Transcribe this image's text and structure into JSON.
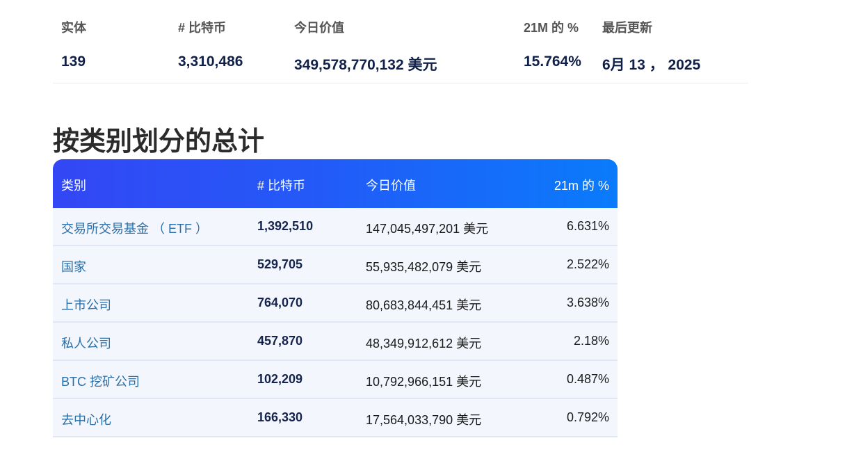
{
  "summary": {
    "headers": [
      "实体",
      "# 比特币",
      "今日价值",
      "21M 的 %",
      "最后更新"
    ],
    "values": [
      "139",
      "3,310,486",
      "349,578,770,132 美元",
      "15.764%",
      "6月 13 ， 2025"
    ]
  },
  "section_title": "按类别划分的总计",
  "category_table": {
    "headers": [
      "类别",
      "# 比特币",
      "今日价值",
      "21m 的 %"
    ],
    "rows": [
      {
        "category": "交易所交易基金 （ ETF ）",
        "btc": "1,392,510",
        "value": "147,045,497,201 美元",
        "pct": "6.631%"
      },
      {
        "category": "国家",
        "btc": "529,705",
        "value": "55,935,482,079 美元",
        "pct": "2.522%"
      },
      {
        "category": "上市公司",
        "btc": "764,070",
        "value": "80,683,844,451 美元",
        "pct": "3.638%"
      },
      {
        "category": "私人公司",
        "btc": "457,870",
        "value": "48,349,912,612 美元",
        "pct": "2.18%"
      },
      {
        "category": "BTC 挖矿公司",
        "btc": "102,209",
        "value": "10,792,966,151 美元",
        "pct": "0.487%"
      },
      {
        "category": "去中心化",
        "btc": "166,330",
        "value": "17,564,033,790 美元",
        "pct": "0.792%"
      }
    ]
  },
  "colors": {
    "header_gradient_start": "#3347f5",
    "header_gradient_end": "#0a7bfb",
    "row_background": "#f3f6fd",
    "category_link": "#2a6fa8",
    "number_text": "#15244c"
  }
}
